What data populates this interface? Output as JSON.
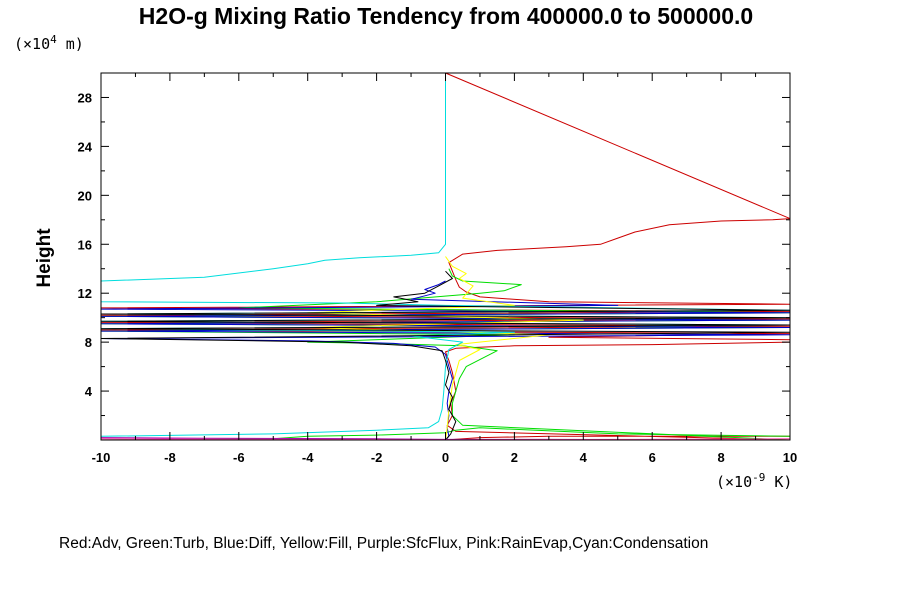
{
  "chart_data": {
    "type": "line",
    "title": "H2O-g Mixing Ratio Tendency from 400000.0 to 500000.0",
    "ylabel": "Height",
    "y_unit_base": "(×10",
    "y_unit_exp": "4",
    "y_unit_tail": " m)",
    "x_unit_base": "(×10",
    "x_unit_exp": "-9",
    "x_unit_tail": " K)",
    "legend_text": "Red:Adv, Green:Turb, Blue:Diff, Yellow:Fill, Purple:SfcFlux, Pink:RainEvap,Cyan:Condensation",
    "xlim": [
      -10,
      10
    ],
    "ylim": [
      0,
      30
    ],
    "x_ticks": [
      -10,
      -8,
      -6,
      -4,
      -2,
      0,
      2,
      4,
      6,
      8,
      10
    ],
    "y_ticks": [
      4,
      8,
      12,
      16,
      20,
      24,
      28
    ],
    "colors": {
      "Adv": "#cc0000",
      "Turb": "#00dd00",
      "Diff": "#0000cc",
      "Fill": "#ffff00",
      "SfcFlux": "#aa00aa",
      "RainEvap": "#ff44aa",
      "Condensation": "#00dddd",
      "Total": "#000000"
    },
    "series": [
      {
        "key": "Adv",
        "points": [
          [
            0,
            0
          ],
          [
            1,
            0.2
          ],
          [
            3,
            0.3
          ],
          [
            5,
            0.3
          ],
          [
            10,
            0.3
          ],
          [
            10,
            0
          ],
          [
            0.3,
            0.7
          ],
          [
            0.05,
            1.2
          ],
          [
            0.2,
            2
          ],
          [
            0.15,
            3
          ],
          [
            0.3,
            4
          ],
          [
            0.2,
            5.5
          ],
          [
            0.1,
            6.5
          ],
          [
            0,
            7.2
          ],
          [
            0.3,
            7.5
          ],
          [
            2,
            7.7
          ],
          [
            6,
            7.8
          ],
          [
            10,
            8
          ],
          [
            10,
            8.2
          ],
          [
            3,
            8.4
          ],
          [
            10,
            8.7
          ],
          [
            -10,
            9
          ],
          [
            10,
            9.3
          ],
          [
            -10,
            9.6
          ],
          [
            10,
            9.9
          ],
          [
            -10,
            10.2
          ],
          [
            10,
            10.5
          ],
          [
            -10,
            10.8
          ],
          [
            10,
            11.1
          ],
          [
            3,
            11.3
          ],
          [
            1,
            11.7
          ],
          [
            0.6,
            12.1
          ],
          [
            0.4,
            12.5
          ],
          [
            0.3,
            13.1
          ],
          [
            0.2,
            13.8
          ],
          [
            0.1,
            14.5
          ],
          [
            0.5,
            15.2
          ],
          [
            1.5,
            15.5
          ],
          [
            3.5,
            15.8
          ],
          [
            4.5,
            16
          ],
          [
            5,
            16.5
          ],
          [
            5.5,
            17
          ],
          [
            6.5,
            17.6
          ],
          [
            8,
            17.9
          ],
          [
            9.5,
            18
          ],
          [
            10,
            18.1
          ],
          [
            10,
            18.1
          ],
          [
            0,
            30
          ]
        ]
      },
      {
        "key": "Turb",
        "points": [
          [
            -10,
            0
          ],
          [
            -5,
            0.1
          ],
          [
            -4,
            0.3
          ],
          [
            -2,
            0.4
          ],
          [
            0,
            0.6
          ],
          [
            0.3,
            0.8
          ],
          [
            1,
            1
          ],
          [
            5,
            0.5
          ],
          [
            10,
            0.3
          ],
          [
            10,
            0
          ],
          [
            0.5,
            1.2
          ],
          [
            0.2,
            2
          ],
          [
            0.2,
            3
          ],
          [
            0.4,
            5
          ],
          [
            0.6,
            6
          ],
          [
            1.5,
            7.3
          ],
          [
            0.5,
            7.7
          ],
          [
            -2,
            7.9
          ],
          [
            -4,
            8
          ],
          [
            2,
            8.6
          ],
          [
            -10,
            8.9
          ],
          [
            10,
            9.2
          ],
          [
            -10,
            9.5
          ],
          [
            10,
            9.8
          ],
          [
            -10,
            10.1
          ],
          [
            10,
            10.4
          ],
          [
            -6,
            10.8
          ],
          [
            -2,
            11.3
          ],
          [
            1,
            12
          ],
          [
            1.7,
            12.2
          ],
          [
            2.2,
            12.7
          ],
          [
            0.5,
            13
          ],
          [
            0.2,
            13.4
          ],
          [
            0.1,
            14
          ]
        ]
      },
      {
        "key": "Diff",
        "points": [
          [
            0,
            0
          ],
          [
            0.1,
            0.3
          ],
          [
            0.05,
            1
          ],
          [
            0.1,
            2
          ],
          [
            0.05,
            3
          ],
          [
            0.1,
            4
          ],
          [
            0.2,
            5
          ],
          [
            0.1,
            6
          ],
          [
            0,
            7
          ],
          [
            -0.3,
            7.6
          ],
          [
            -1.5,
            7.9
          ],
          [
            -4,
            8.1
          ],
          [
            -10,
            8.3
          ],
          [
            10,
            8.6
          ],
          [
            -10,
            8.9
          ],
          [
            10,
            9.2
          ],
          [
            -10,
            9.5
          ],
          [
            10,
            9.8
          ],
          [
            -10,
            10.1
          ],
          [
            10,
            10.4
          ],
          [
            -10,
            10.7
          ],
          [
            5,
            11
          ],
          [
            -1,
            11.5
          ],
          [
            -0.3,
            12
          ],
          [
            -0.6,
            12.3
          ],
          [
            -0.2,
            12.7
          ],
          [
            0,
            13
          ]
        ]
      },
      {
        "key": "Fill",
        "points": [
          [
            0,
            0
          ],
          [
            0.05,
            1
          ],
          [
            0.1,
            2.5
          ],
          [
            0.2,
            4.5
          ],
          [
            0.4,
            6.5
          ],
          [
            1,
            7.4
          ],
          [
            0.3,
            7.8
          ],
          [
            3,
            8.6
          ],
          [
            -4,
            9.2
          ],
          [
            4,
            9.8
          ],
          [
            -4,
            10.4
          ],
          [
            2,
            11
          ],
          [
            0.5,
            11.6
          ],
          [
            0.8,
            12.6
          ],
          [
            0.4,
            13.2
          ],
          [
            0.6,
            13.6
          ],
          [
            0.2,
            14.2
          ],
          [
            0,
            15
          ]
        ]
      },
      {
        "key": "Condensation",
        "points": [
          [
            0,
            30
          ],
          [
            0,
            29
          ],
          [
            0,
            16
          ],
          [
            -0.2,
            15.3
          ],
          [
            -1,
            15.1
          ],
          [
            -2.5,
            14.9
          ],
          [
            -3.5,
            14.7
          ],
          [
            -4,
            14.4
          ],
          [
            -5,
            14
          ],
          [
            -7,
            13.3
          ],
          [
            -10,
            13
          ],
          [
            -10,
            11.3
          ],
          [
            -3,
            11.2
          ],
          [
            0,
            11
          ],
          [
            10,
            10.6
          ],
          [
            -10,
            10.3
          ],
          [
            10,
            10
          ],
          [
            -10,
            9.7
          ],
          [
            10,
            9.4
          ],
          [
            -10,
            9.1
          ],
          [
            2,
            8.8
          ],
          [
            -1,
            8.5
          ],
          [
            0.5,
            8
          ],
          [
            0.1,
            7.4
          ],
          [
            0,
            6
          ],
          [
            -0.05,
            4
          ],
          [
            -0.1,
            2.5
          ],
          [
            -0.2,
            1.5
          ],
          [
            -0.5,
            1
          ],
          [
            -2,
            0.8
          ],
          [
            -5,
            0.5
          ],
          [
            -10,
            0.3
          ],
          [
            -10,
            0
          ]
        ]
      },
      {
        "key": "Total",
        "points": [
          [
            0,
            0
          ],
          [
            0.15,
            0.5
          ],
          [
            0.3,
            1.5
          ],
          [
            0.1,
            2.5
          ],
          [
            0.2,
            3.5
          ],
          [
            0,
            4.5
          ],
          [
            0.1,
            5.5
          ],
          [
            0,
            6.5
          ],
          [
            -0.1,
            7.3
          ],
          [
            -1,
            7.7
          ],
          [
            -3,
            8
          ],
          [
            -10,
            8.3
          ],
          [
            10,
            8.8
          ],
          [
            -10,
            9.1
          ],
          [
            10,
            9.4
          ],
          [
            -10,
            9.7
          ],
          [
            10,
            10
          ],
          [
            -10,
            10.3
          ],
          [
            10,
            10.6
          ],
          [
            -2,
            11
          ],
          [
            -0.8,
            11.3
          ],
          [
            -1.5,
            11.7
          ],
          [
            -0.6,
            12
          ],
          [
            -0.2,
            12.6
          ],
          [
            0.2,
            13.2
          ],
          [
            0,
            13.8
          ]
        ]
      },
      {
        "key": "SfcFlux",
        "points": [
          [
            -10,
            0
          ],
          [
            -10,
            0.2
          ],
          [
            -7,
            0.15
          ],
          [
            -2,
            0.1
          ],
          [
            0,
            0.05
          ],
          [
            3,
            0.05
          ],
          [
            10,
            0
          ]
        ]
      },
      {
        "key": "RainEvap",
        "points": [
          [
            -10,
            0.1
          ],
          [
            -5,
            0.05
          ],
          [
            0,
            0.02
          ],
          [
            5,
            0.05
          ],
          [
            10,
            0.1
          ]
        ]
      }
    ]
  }
}
